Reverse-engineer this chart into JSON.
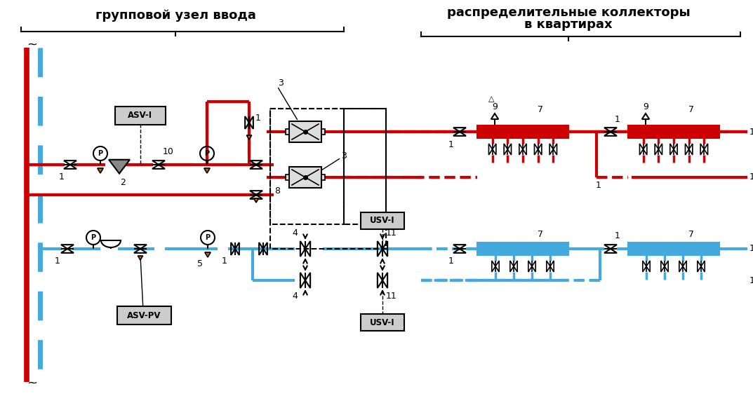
{
  "bg": "#ffffff",
  "rc": "#cc0000",
  "bc": "#44aadd",
  "blk": "#000000",
  "plw": 3.0,
  "tlw": 1.5,
  "title_left": "групповой узел ввода",
  "title_right_1": "распределительные коллекторы",
  "title_right_2": "в квартирах",
  "label_asv_i": "ASV-I",
  "label_asv_pv": "ASV-PV",
  "label_usv_top": "USV-I",
  "label_usv_bot": "USV-I"
}
